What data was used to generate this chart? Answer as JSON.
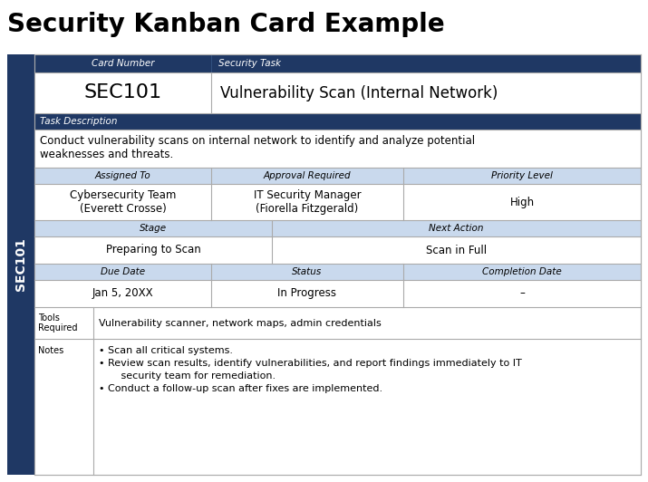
{
  "title": "Security Kanban Card Example",
  "side_label": "SEC101",
  "dark_blue": "#1F3864",
  "light_blue_header": "#C9D9ED",
  "white": "#FFFFFF",
  "bg": "#F2F2F2",
  "card_number_label": "Card Number",
  "security_task_label": "Security Task",
  "card_number_value": "SEC101",
  "security_task_value": "Vulnerability Scan (Internal Network)",
  "task_desc_label": "Task Description",
  "task_desc_line1": "Conduct vulnerability scans on internal network to identify and analyze potential",
  "task_desc_line2": "weaknesses and threats.",
  "assigned_to_label": "Assigned To",
  "approval_label": "Approval Required",
  "priority_label": "Priority Level",
  "assigned_to_value": "Cybersecurity Team\n(Everett Crosse)",
  "approval_value": "IT Security Manager\n(Fiorella Fitzgerald)",
  "priority_value": "High",
  "stage_label": "Stage",
  "next_action_label": "Next Action",
  "stage_value": "Preparing to Scan",
  "next_action_value": "Scan in Full",
  "due_date_label": "Due Date",
  "status_label": "Status",
  "completion_label": "Completion Date",
  "due_date_value": "Jan 5, 20XX",
  "status_value": "In Progress",
  "completion_value": "–",
  "tools_label": "Tools\nRequired",
  "tools_value": "Vulnerability scanner, network maps, admin credentials",
  "notes_label": "Notes",
  "note1": "Scan all critical systems.",
  "note2": "Review scan results, identify vulnerabilities, and report findings immediately to IT",
  "note2b": "    security team for remediation.",
  "note3": "Conduct a follow-up scan after fixes are implemented.",
  "title_fontsize": 20,
  "header_label_fontsize": 7.5,
  "value_fontsize": 8.5,
  "card_num_fontsize": 16,
  "task_fontsize": 12,
  "desc_fontsize": 8.5,
  "note_fontsize": 8
}
